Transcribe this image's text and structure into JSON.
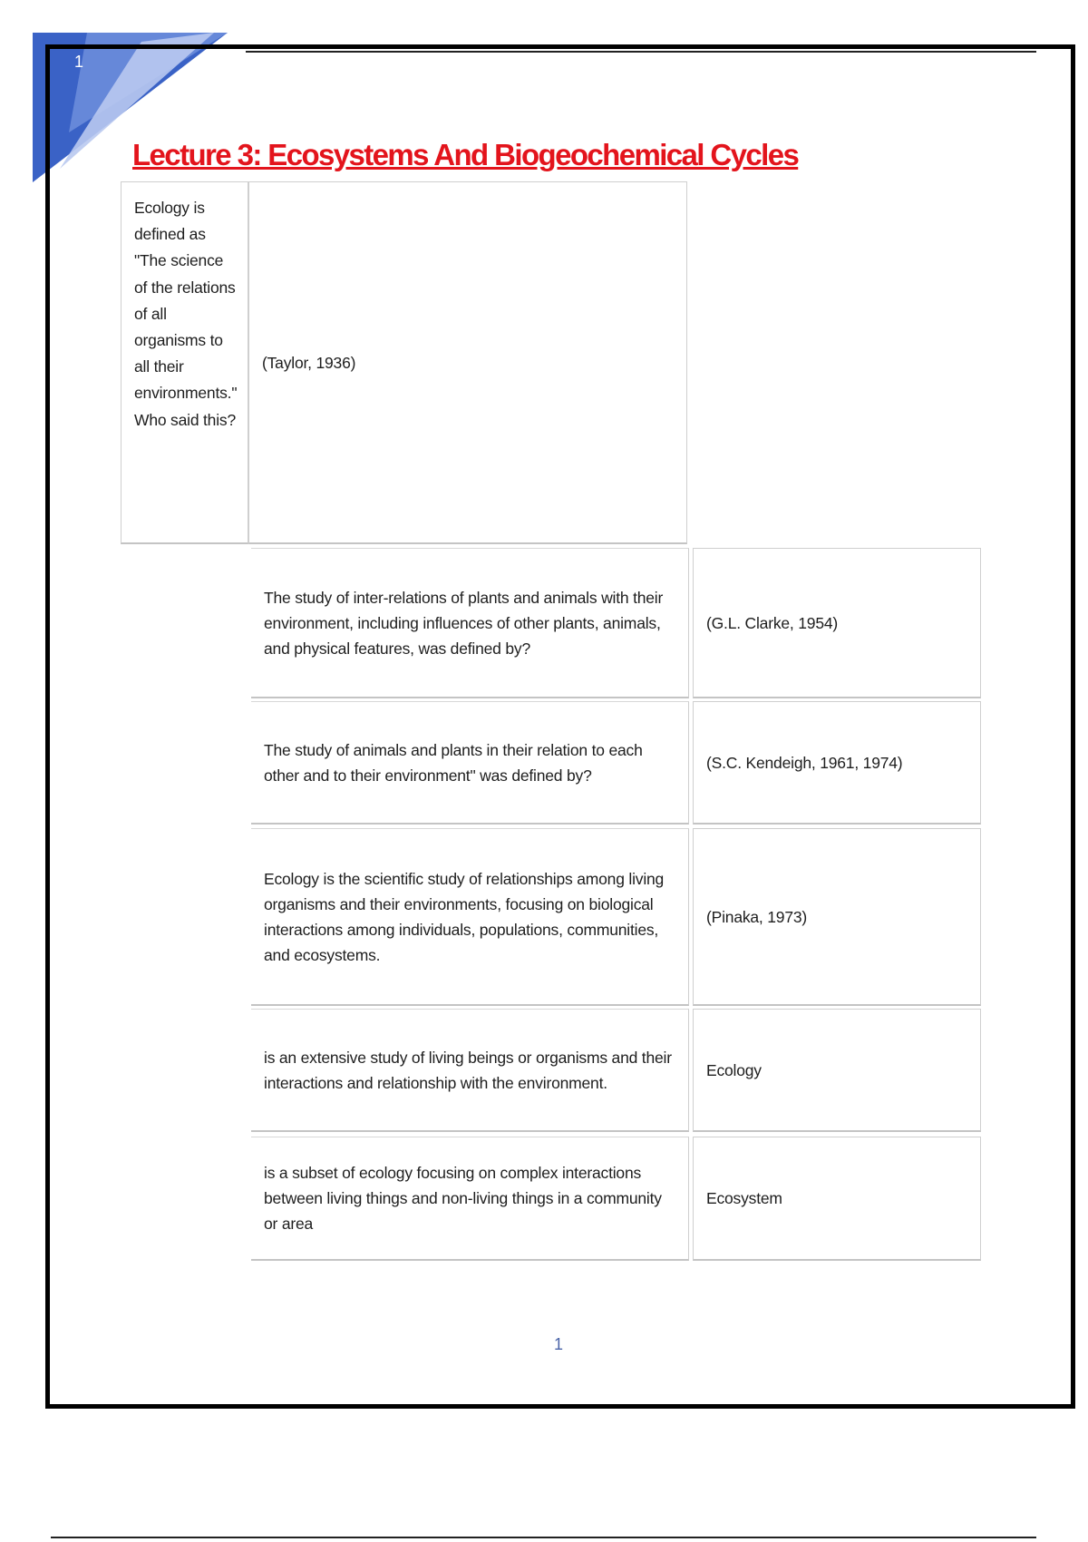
{
  "header": {
    "corner_number": "1"
  },
  "title": "Lecture 3: Ecosystems And Biogeochemical Cycles",
  "first_row": {
    "question": "Ecology is defined as \"The science of the relations of all organisms to all their environments.\" Who said this?",
    "answer": "(Taylor, 1936)"
  },
  "rows": [
    {
      "question": "The study of inter-relations of plants and animals with their environment, including influences of other plants, animals, and physical features, was defined by?",
      "answer": "(G.L. Clarke, 1954)"
    },
    {
      "question": "The study of animals and plants in their relation to each other and to their environment\" was defined by?",
      "answer": "(S.C. Kendeigh, 1961, 1974)"
    },
    {
      "question": "Ecology is the scientific study of relationships among living organisms and their environments, focusing on biological interactions among individuals, populations, communities, and ecosystems.",
      "answer": "(Pinaka, 1973)"
    },
    {
      "question": "is an extensive study of living beings or organisms and their interactions and relationship with the environment.",
      "answer": "Ecology"
    },
    {
      "question": "is a subset of ecology focusing on complex interactions between living things and non-living things in a community or area",
      "answer": "Ecosystem"
    }
  ],
  "footer": {
    "page_number": "1"
  },
  "colors": {
    "title": "#e3141c",
    "corner_blue": "#3b63c4",
    "page_number": "#4a64a8"
  }
}
